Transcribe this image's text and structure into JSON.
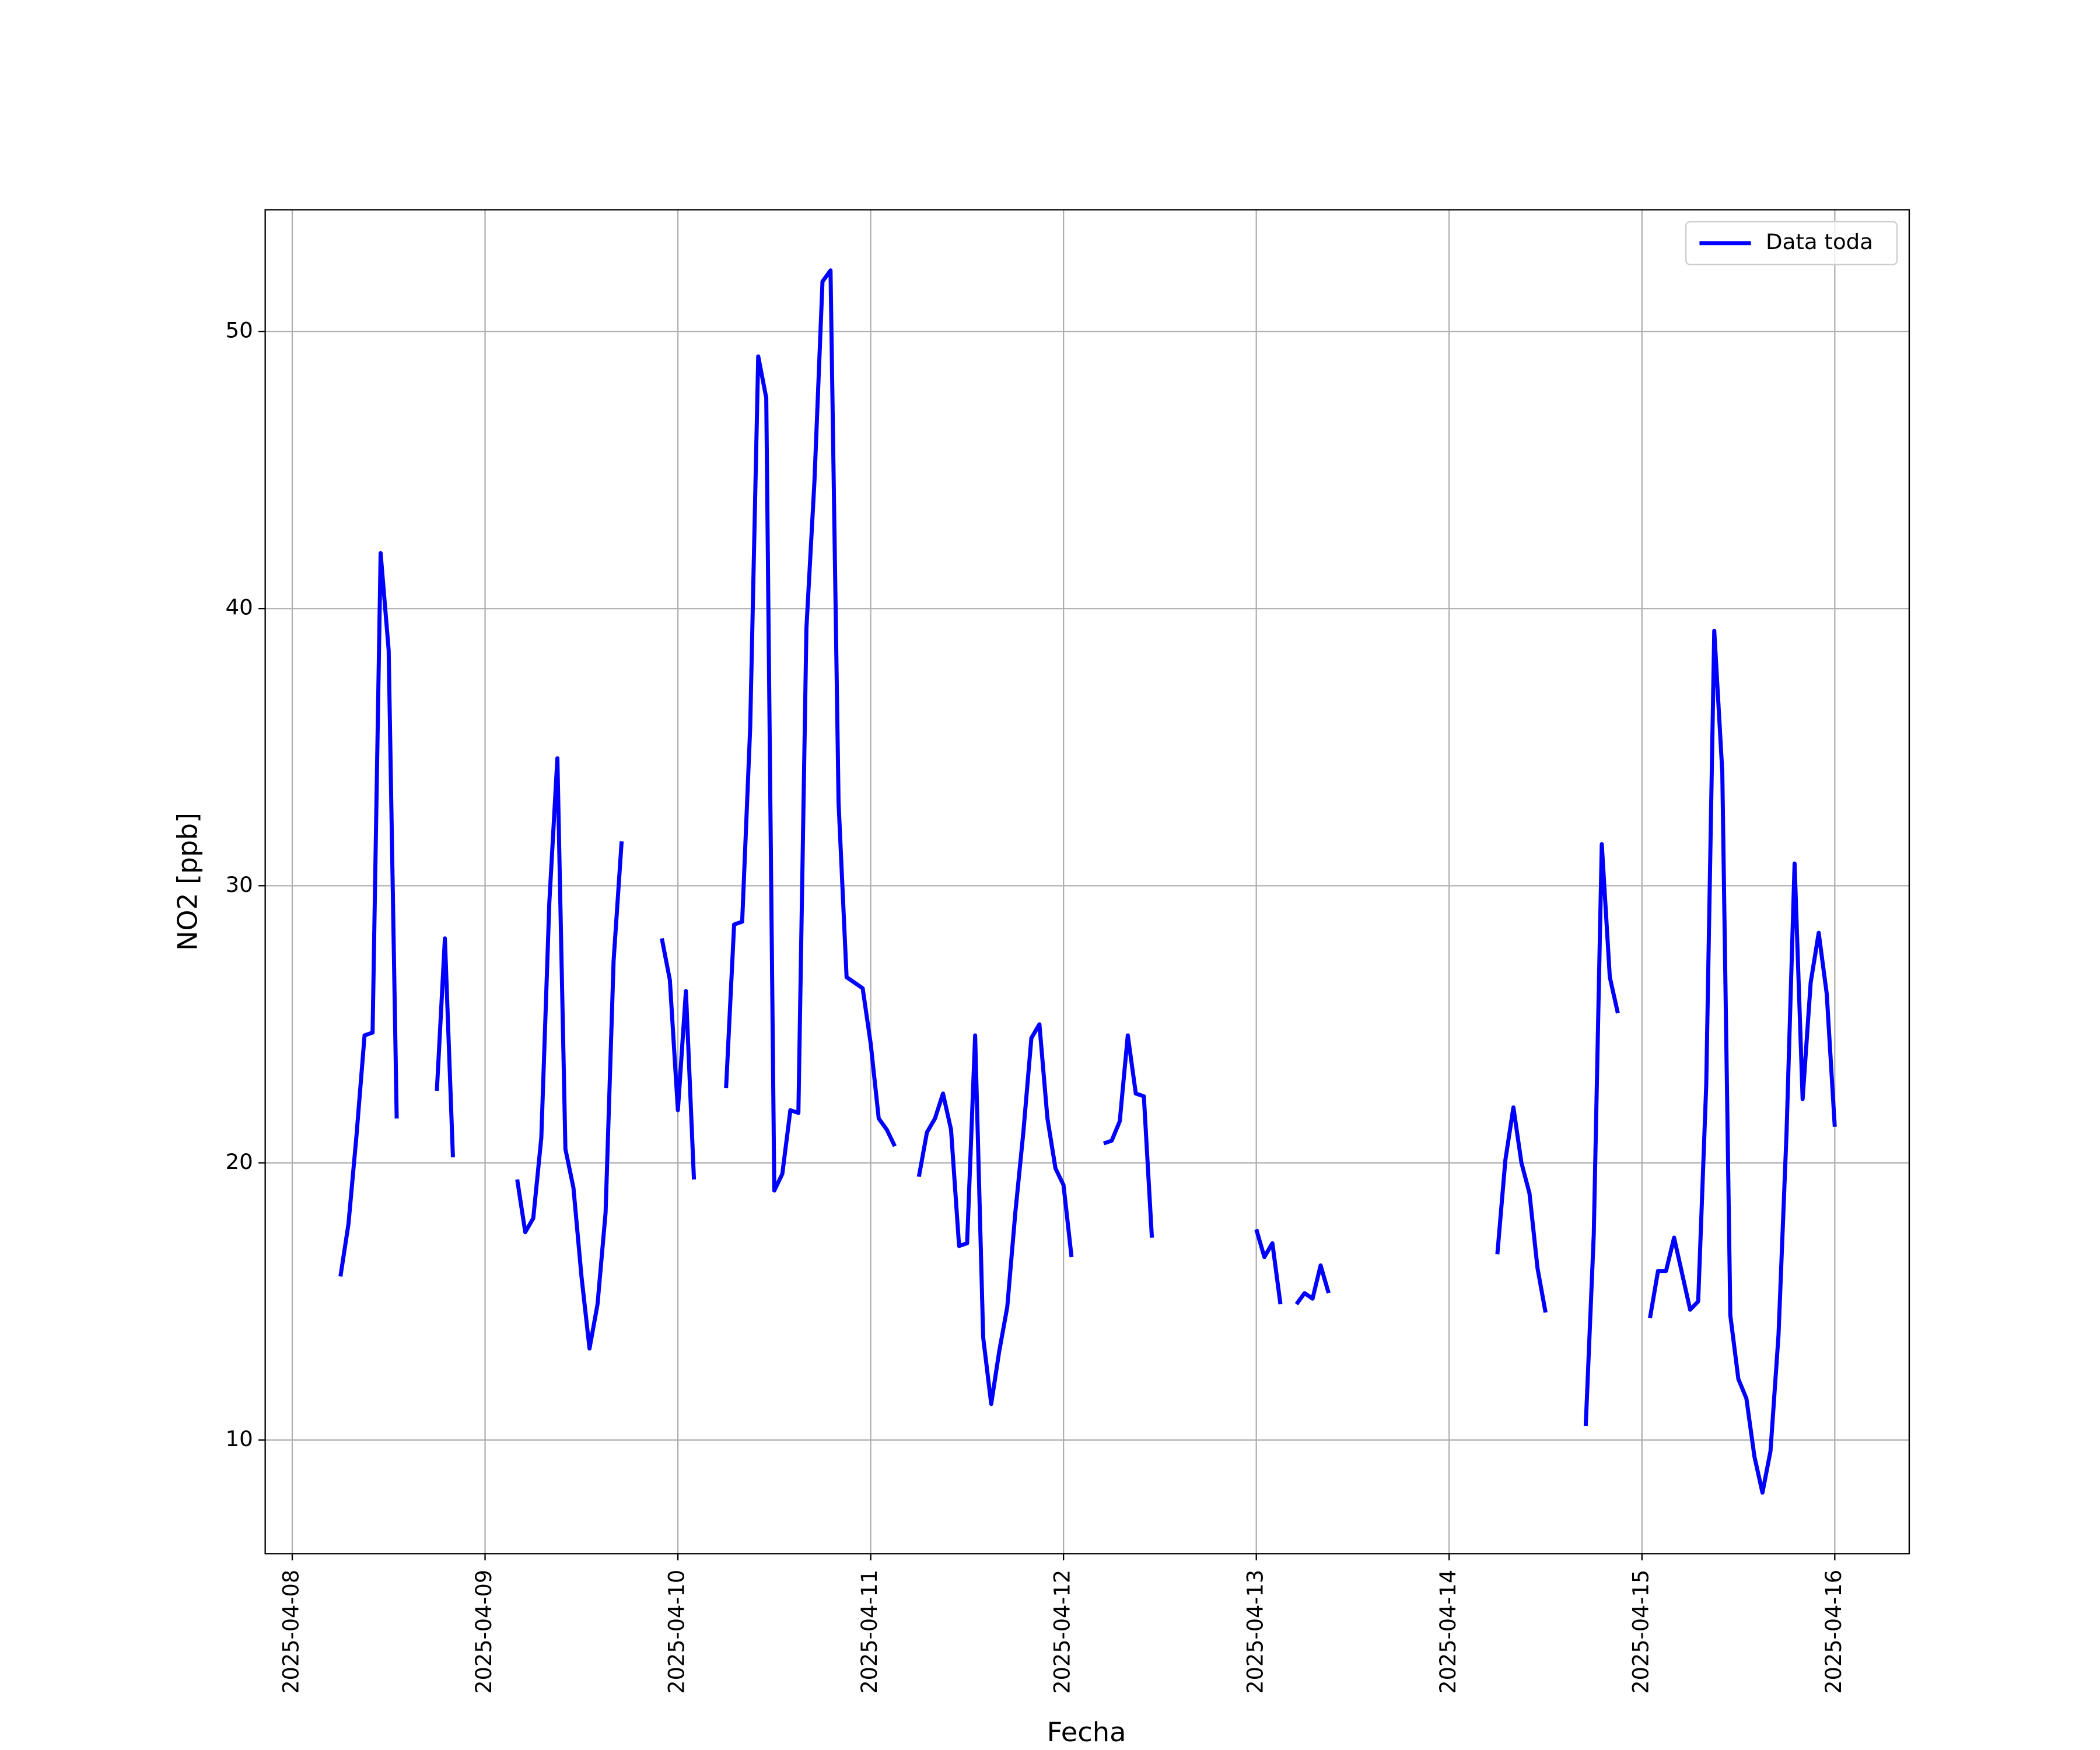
{
  "chart_data": {
    "type": "line",
    "xlabel": "Fecha",
    "ylabel": "NO2 [ppb]",
    "x": [
      "2025-04-08T06:00",
      "2025-04-08T07:00",
      "2025-04-08T08:00",
      "2025-04-08T09:00",
      "2025-04-08T10:00",
      "2025-04-08T11:00",
      "2025-04-08T12:00",
      "2025-04-08T13:00",
      "2025-04-08T14:00",
      "2025-04-08T15:00",
      "2025-04-08T16:00",
      "2025-04-08T17:00",
      "2025-04-08T18:00",
      "2025-04-08T19:00",
      "2025-04-08T20:00",
      "2025-04-08T21:00",
      "2025-04-08T22:00",
      "2025-04-08T23:00",
      "2025-04-09T00:00",
      "2025-04-09T01:00",
      "2025-04-09T02:00",
      "2025-04-09T03:00",
      "2025-04-09T04:00",
      "2025-04-09T05:00",
      "2025-04-09T06:00",
      "2025-04-09T07:00",
      "2025-04-09T08:00",
      "2025-04-09T09:00",
      "2025-04-09T10:00",
      "2025-04-09T11:00",
      "2025-04-09T12:00",
      "2025-04-09T13:00",
      "2025-04-09T14:00",
      "2025-04-09T15:00",
      "2025-04-09T16:00",
      "2025-04-09T17:00",
      "2025-04-09T18:00",
      "2025-04-09T19:00",
      "2025-04-09T20:00",
      "2025-04-09T21:00",
      "2025-04-09T22:00",
      "2025-04-09T23:00",
      "2025-04-10T00:00",
      "2025-04-10T01:00",
      "2025-04-10T02:00",
      "2025-04-10T03:00",
      "2025-04-10T04:00",
      "2025-04-10T05:00",
      "2025-04-10T06:00",
      "2025-04-10T07:00",
      "2025-04-10T08:00",
      "2025-04-10T09:00",
      "2025-04-10T10:00",
      "2025-04-10T11:00",
      "2025-04-10T12:00",
      "2025-04-10T13:00",
      "2025-04-10T14:00",
      "2025-04-10T15:00",
      "2025-04-10T16:00",
      "2025-04-10T17:00",
      "2025-04-10T18:00",
      "2025-04-10T19:00",
      "2025-04-10T20:00",
      "2025-04-10T21:00",
      "2025-04-10T22:00",
      "2025-04-10T23:00",
      "2025-04-11T00:00",
      "2025-04-11T01:00",
      "2025-04-11T02:00",
      "2025-04-11T03:00",
      "2025-04-11T04:00",
      "2025-04-11T05:00",
      "2025-04-11T06:00",
      "2025-04-11T07:00",
      "2025-04-11T08:00",
      "2025-04-11T09:00",
      "2025-04-11T10:00",
      "2025-04-11T11:00",
      "2025-04-11T12:00",
      "2025-04-11T13:00",
      "2025-04-11T14:00",
      "2025-04-11T15:00",
      "2025-04-11T16:00",
      "2025-04-11T17:00",
      "2025-04-11T18:00",
      "2025-04-11T19:00",
      "2025-04-11T20:00",
      "2025-04-11T21:00",
      "2025-04-11T22:00",
      "2025-04-11T23:00",
      "2025-04-12T00:00",
      "2025-04-12T01:00",
      "2025-04-12T02:00",
      "2025-04-12T03:00",
      "2025-04-12T04:00",
      "2025-04-12T05:00",
      "2025-04-12T06:00",
      "2025-04-12T07:00",
      "2025-04-12T08:00",
      "2025-04-12T09:00",
      "2025-04-12T10:00",
      "2025-04-12T11:00",
      "2025-04-12T12:00",
      "2025-04-12T13:00",
      "2025-04-12T14:00",
      "2025-04-12T15:00",
      "2025-04-12T16:00",
      "2025-04-12T17:00",
      "2025-04-12T18:00",
      "2025-04-12T19:00",
      "2025-04-12T20:00",
      "2025-04-12T21:00",
      "2025-04-12T22:00",
      "2025-04-12T23:00",
      "2025-04-13T00:00",
      "2025-04-13T01:00",
      "2025-04-13T02:00",
      "2025-04-13T03:00",
      "2025-04-13T04:00",
      "2025-04-13T05:00",
      "2025-04-13T06:00",
      "2025-04-13T07:00",
      "2025-04-13T08:00",
      "2025-04-13T09:00",
      "2025-04-13T10:00",
      "2025-04-13T11:00",
      "2025-04-13T12:00",
      "2025-04-13T13:00",
      "2025-04-13T14:00",
      "2025-04-13T15:00",
      "2025-04-13T16:00",
      "2025-04-13T17:00",
      "2025-04-13T18:00",
      "2025-04-13T19:00",
      "2025-04-13T20:00",
      "2025-04-13T21:00",
      "2025-04-13T22:00",
      "2025-04-13T23:00",
      "2025-04-14T00:00",
      "2025-04-14T01:00",
      "2025-04-14T02:00",
      "2025-04-14T03:00",
      "2025-04-14T04:00",
      "2025-04-14T05:00",
      "2025-04-14T06:00",
      "2025-04-14T07:00",
      "2025-04-14T08:00",
      "2025-04-14T09:00",
      "2025-04-14T10:00",
      "2025-04-14T11:00",
      "2025-04-14T12:00",
      "2025-04-14T13:00",
      "2025-04-14T14:00",
      "2025-04-14T15:00",
      "2025-04-14T16:00",
      "2025-04-14T17:00",
      "2025-04-14T18:00",
      "2025-04-14T19:00",
      "2025-04-14T20:00",
      "2025-04-14T21:00",
      "2025-04-14T22:00",
      "2025-04-14T23:00",
      "2025-04-15T00:00",
      "2025-04-15T01:00",
      "2025-04-15T02:00",
      "2025-04-15T03:00",
      "2025-04-15T04:00",
      "2025-04-15T05:00",
      "2025-04-15T06:00",
      "2025-04-15T07:00",
      "2025-04-15T08:00",
      "2025-04-15T09:00",
      "2025-04-15T10:00",
      "2025-04-15T11:00",
      "2025-04-15T12:00",
      "2025-04-15T13:00",
      "2025-04-15T14:00",
      "2025-04-15T15:00",
      "2025-04-15T16:00",
      "2025-04-15T17:00",
      "2025-04-15T18:00",
      "2025-04-15T19:00",
      "2025-04-15T20:00",
      "2025-04-15T21:00",
      "2025-04-15T22:00",
      "2025-04-15T23:00",
      "2025-04-16T00:00"
    ],
    "series": [
      {
        "name": "Data toda",
        "color": "#0000ff",
        "values": [
          15.9,
          17.8,
          21.0,
          24.6,
          24.7,
          42.0,
          38.5,
          21.6,
          null,
          null,
          null,
          null,
          22.6,
          28.1,
          20.2,
          null,
          null,
          null,
          null,
          null,
          null,
          null,
          19.4,
          17.5,
          18.0,
          20.9,
          29.4,
          34.6,
          20.5,
          19.1,
          15.9,
          13.3,
          14.9,
          18.2,
          27.3,
          31.6,
          null,
          null,
          null,
          null,
          28.1,
          26.6,
          21.9,
          26.2,
          19.4,
          null,
          null,
          null,
          22.7,
          28.6,
          28.7,
          35.7,
          49.1,
          47.6,
          19.0,
          19.6,
          21.9,
          21.8,
          39.3,
          44.6,
          51.8,
          52.2,
          33.0,
          26.7,
          26.5,
          26.3,
          24.3,
          21.6,
          21.2,
          20.6,
          null,
          null,
          19.5,
          21.1,
          21.6,
          22.5,
          21.2,
          17.0,
          17.1,
          24.6,
          13.7,
          11.3,
          13.2,
          14.8,
          18.2,
          21.1,
          24.5,
          25.0,
          21.6,
          19.8,
          19.2,
          16.6,
          null,
          null,
          null,
          20.7,
          20.8,
          21.5,
          24.6,
          22.5,
          22.4,
          17.3,
          null,
          null,
          null,
          null,
          null,
          null,
          null,
          null,
          null,
          null,
          null,
          null,
          17.6,
          16.6,
          17.1,
          14.9,
          null,
          14.9,
          15.3,
          15.1,
          16.3,
          15.3,
          null,
          null,
          null,
          null,
          null,
          null,
          null,
          null,
          null,
          null,
          null,
          null,
          null,
          null,
          null,
          null,
          null,
          null,
          null,
          null,
          16.7,
          20.1,
          22.0,
          20.0,
          18.9,
          16.2,
          14.6,
          null,
          null,
          null,
          null,
          10.5,
          17.4,
          31.5,
          26.7,
          25.4,
          null,
          null,
          null,
          14.4,
          16.1,
          16.1,
          17.3,
          16.0,
          14.7,
          15.0,
          22.8,
          39.2,
          34.1,
          14.5,
          12.2,
          11.5,
          9.4,
          8.1,
          9.6,
          13.8,
          21.1,
          30.8,
          22.3,
          26.5,
          28.3,
          26.1,
          21.3
        ]
      }
    ],
    "xlim": [
      "2025-04-07T20:38",
      "2025-04-16T09:16"
    ],
    "xticks": [
      "2025-04-08",
      "2025-04-09",
      "2025-04-10",
      "2025-04-11",
      "2025-04-12",
      "2025-04-13",
      "2025-04-14",
      "2025-04-15",
      "2025-04-16"
    ],
    "ylim": [
      5.9,
      54.39
    ],
    "yticks": [
      10,
      20,
      30,
      40,
      50
    ],
    "grid": true,
    "legend": "upper right"
  }
}
